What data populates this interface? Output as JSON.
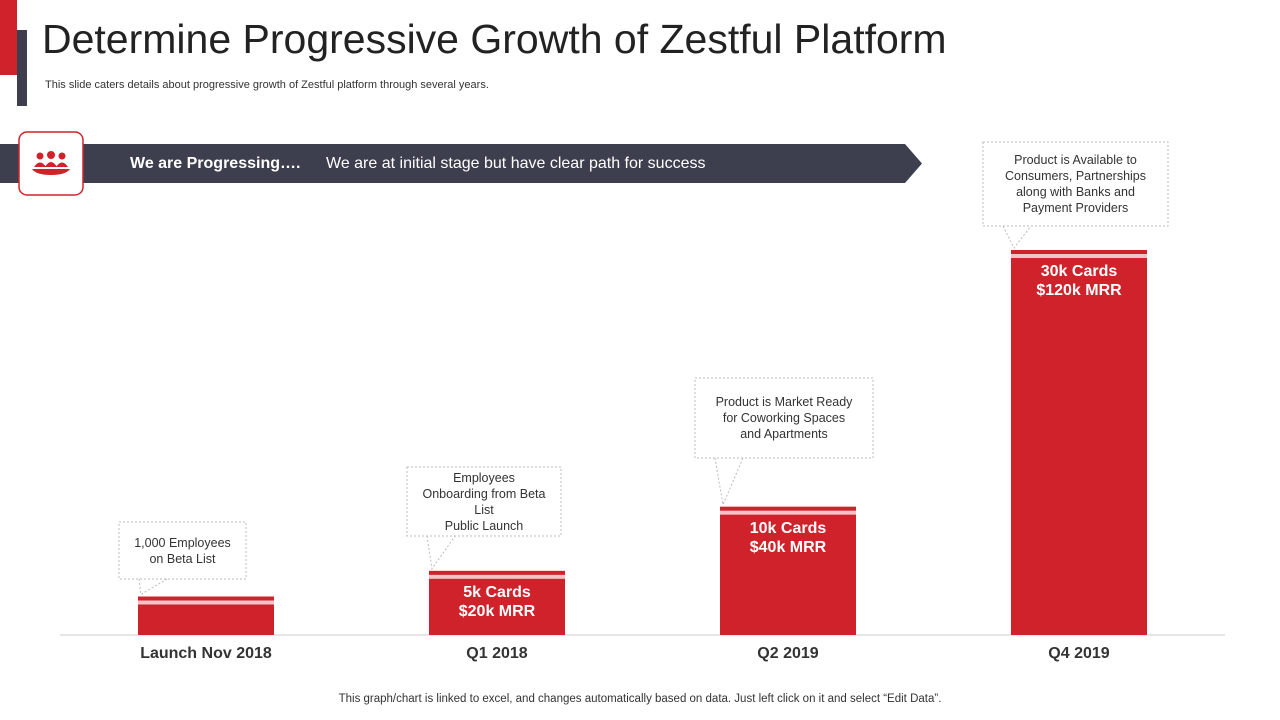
{
  "header": {
    "title": "Determine Progressive Growth of Zestful Platform",
    "subtitle": "This slide caters details about progressive growth of Zestful platform through several years."
  },
  "banner": {
    "heading": "We are Progressing….",
    "text": "We are at initial stage but have clear path for success"
  },
  "chart_data": {
    "type": "bar",
    "categories": [
      "Launch Nov 2018",
      "Q1 2018",
      "Q2 2019",
      "Q4 2019"
    ],
    "values": [
      3,
      5,
      10,
      30
    ],
    "value_labels": [
      null,
      "5k Cards\n$20k MRR",
      "10k Cards\n$40k MRR",
      "30k Cards\n$120k MRR"
    ],
    "color": "#d0222a",
    "ylim": [
      0,
      30
    ],
    "annotations": [
      "1,000 Employees\non Beta List",
      "Employees\nOnboarding from Beta\nList\nPublic Launch",
      "Product is Market Ready\nfor Coworking Spaces\nand Apartments",
      "Product is Available to\nConsumers, Partnerships\nalong with Banks and\nPayment Providers"
    ]
  },
  "footer": "This graph/chart is linked to excel, and changes automatically based on data. Just left click on it and select “Edit Data”."
}
